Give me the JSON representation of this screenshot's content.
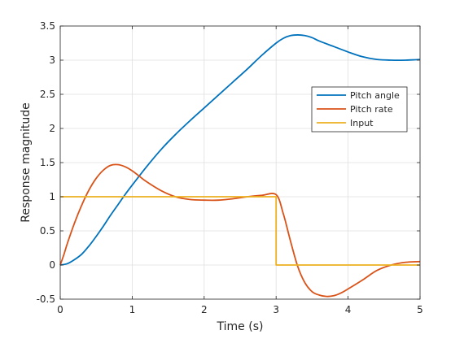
{
  "chart_data": {
    "type": "line",
    "title": "",
    "xlabel": "Time (s)",
    "ylabel": "Response magnitude",
    "xlim": [
      0,
      5
    ],
    "ylim": [
      -0.5,
      3.5
    ],
    "xticks": [
      0,
      1,
      2,
      3,
      4,
      5
    ],
    "xtick_labels": [
      "0",
      "1",
      "2",
      "3",
      "4",
      "5"
    ],
    "yticks": [
      -0.5,
      0,
      0.5,
      1,
      1.5,
      2,
      2.5,
      3,
      3.5
    ],
    "ytick_labels": [
      "-0.5",
      "0",
      "0.5",
      "1",
      "1.5",
      "2",
      "2.5",
      "3",
      "3.5"
    ],
    "grid": true,
    "legend_position": "top-right",
    "series": [
      {
        "name": "Pitch angle",
        "color": "#0072BD",
        "x": [
          0,
          0.1,
          0.2,
          0.3,
          0.4,
          0.5,
          0.6,
          0.7,
          0.8,
          0.9,
          1.0,
          1.2,
          1.4,
          1.6,
          1.8,
          2.0,
          2.2,
          2.4,
          2.6,
          2.8,
          3.0,
          3.1,
          3.2,
          3.3,
          3.4,
          3.5,
          3.6,
          3.8,
          4.0,
          4.2,
          4.4,
          4.6,
          4.8,
          5.0
        ],
        "y": [
          0,
          0.02,
          0.08,
          0.16,
          0.28,
          0.42,
          0.57,
          0.73,
          0.88,
          1.03,
          1.17,
          1.44,
          1.69,
          1.91,
          2.11,
          2.3,
          2.49,
          2.68,
          2.87,
          3.07,
          3.25,
          3.32,
          3.36,
          3.37,
          3.36,
          3.33,
          3.28,
          3.2,
          3.12,
          3.05,
          3.01,
          3.0,
          3.0,
          3.01
        ]
      },
      {
        "name": "Pitch rate",
        "color": "#D95319",
        "x": [
          0,
          0.05,
          0.1,
          0.2,
          0.3,
          0.4,
          0.5,
          0.6,
          0.7,
          0.8,
          0.9,
          1.0,
          1.1,
          1.2,
          1.4,
          1.6,
          1.8,
          2.0,
          2.2,
          2.4,
          2.6,
          2.8,
          3.0,
          3.1,
          3.2,
          3.3,
          3.4,
          3.5,
          3.6,
          3.7,
          3.8,
          3.9,
          4.0,
          4.2,
          4.4,
          4.6,
          4.8,
          5.0
        ],
        "y": [
          0,
          0.15,
          0.32,
          0.62,
          0.88,
          1.1,
          1.27,
          1.39,
          1.46,
          1.47,
          1.44,
          1.38,
          1.3,
          1.22,
          1.09,
          1.0,
          0.96,
          0.95,
          0.95,
          0.97,
          1.0,
          1.02,
          1.03,
          0.75,
          0.35,
          -0.02,
          -0.26,
          -0.39,
          -0.44,
          -0.46,
          -0.45,
          -0.41,
          -0.35,
          -0.22,
          -0.08,
          0.0,
          0.04,
          0.05
        ]
      },
      {
        "name": "Input",
        "color": "#EDB120",
        "x": [
          0,
          3,
          3,
          5
        ],
        "y": [
          1,
          1,
          0,
          0
        ]
      }
    ]
  }
}
